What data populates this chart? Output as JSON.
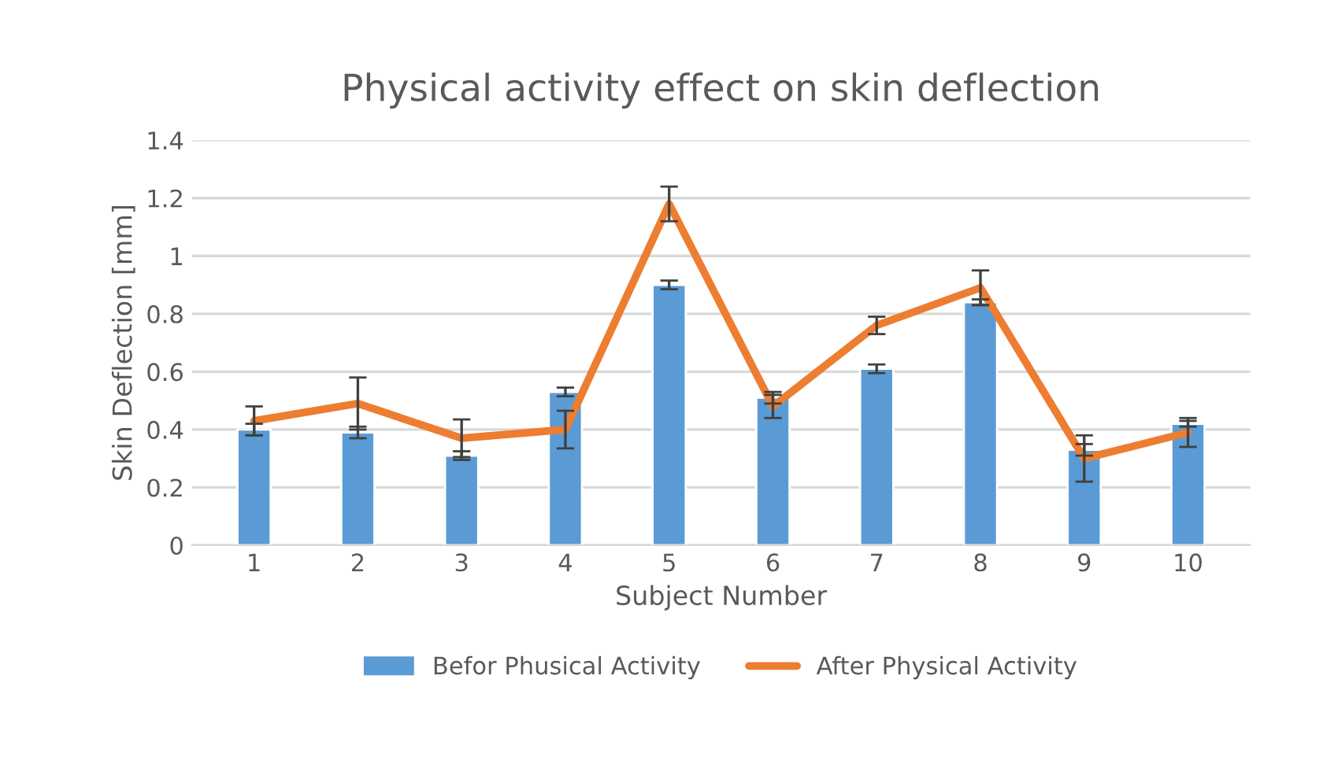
{
  "chart_data": {
    "type": "bar",
    "title": "Physical activity effect on skin deflection",
    "xlabel": "Subject Number",
    "ylabel": "Skin Deflection [mm]",
    "categories": [
      "1",
      "2",
      "3",
      "4",
      "5",
      "6",
      "7",
      "8",
      "9",
      "10"
    ],
    "series": [
      {
        "name": "Befor Phusical Activity",
        "color": "#5b9bd5",
        "values": [
          0.4,
          0.39,
          0.31,
          0.53,
          0.9,
          0.51,
          0.61,
          0.84,
          0.33,
          0.42
        ],
        "errors": [
          0.02,
          0.02,
          0.015,
          0.015,
          0.015,
          0.02,
          0.015,
          0.01,
          0.02,
          0.01
        ]
      },
      {
        "name": "After Physical Activity",
        "type": "line",
        "color": "#ed7d31",
        "values": [
          0.43,
          0.49,
          0.37,
          0.4,
          1.18,
          0.48,
          0.76,
          0.89,
          0.3,
          0.39
        ],
        "errors": [
          0.05,
          0.09,
          0.065,
          0.065,
          0.06,
          0.04,
          0.03,
          0.06,
          0.08,
          0.05
        ]
      }
    ],
    "ylim": [
      0,
      1.4
    ],
    "yticks": [
      0,
      0.2,
      0.4,
      0.6,
      0.8,
      1,
      1.2,
      1.4
    ],
    "grid": "y",
    "legend": "bottom",
    "marker": "none",
    "line_style": "solid"
  }
}
